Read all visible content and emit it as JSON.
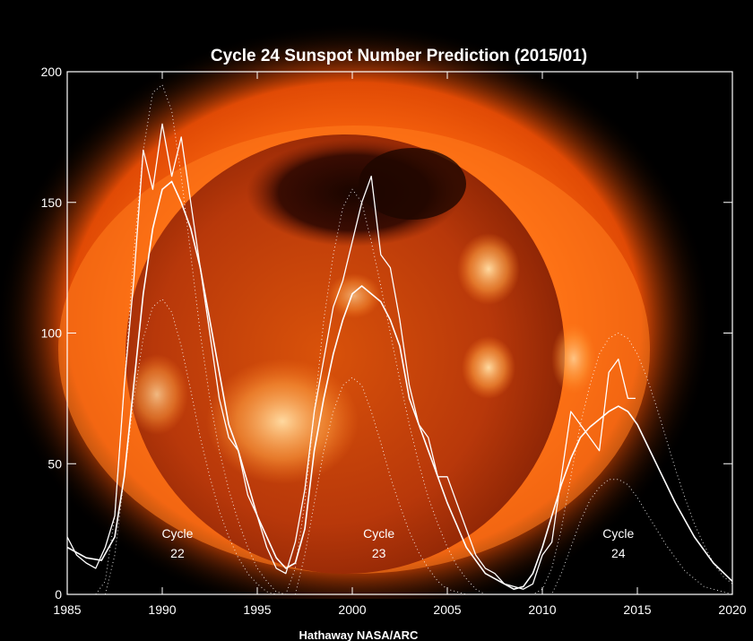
{
  "chart_data": {
    "type": "line",
    "title": "Cycle 24 Sunspot Number Prediction (2015/01)",
    "credit": "Hathaway  NASA/ARC",
    "xlabel": "",
    "ylabel": "",
    "xlim": [
      1985,
      2020
    ],
    "ylim": [
      0,
      200
    ],
    "x_ticks": [
      "1985",
      "1990",
      "1995",
      "2000",
      "2005",
      "2010",
      "2015",
      "2020"
    ],
    "y_ticks": [
      "0",
      "50",
      "100",
      "150",
      "200"
    ],
    "cycle_labels": [
      {
        "line1": "Cycle",
        "line2": "22",
        "year": 1990.8
      },
      {
        "line1": "Cycle",
        "line2": "23",
        "year": 2001.4
      },
      {
        "line1": "Cycle",
        "line2": "24",
        "year": 2014.0
      }
    ],
    "series": [
      {
        "style": "monthly",
        "x": [
          1985.0,
          1985.5,
          1986.0,
          1986.5,
          1987.0,
          1987.5,
          1988.0,
          1988.5,
          1989.0,
          1989.5,
          1990.0,
          1990.5,
          1991.0,
          1991.5,
          1992.0,
          1992.5,
          1993.0,
          1993.5,
          1994.0,
          1994.5,
          1995.0,
          1995.5,
          1996.0,
          1996.5,
          1997.0,
          1997.5,
          1998.0,
          1998.5,
          1999.0,
          1999.5,
          2000.0,
          2000.5,
          2001.0,
          2001.5,
          2002.0,
          2002.5,
          2003.0,
          2003.5,
          2004.0,
          2004.5,
          2005.0,
          2005.5,
          2006.0,
          2006.5,
          2007.0,
          2007.5,
          2008.0,
          2008.5,
          2009.0,
          2009.5,
          2010.0,
          2010.5,
          2011.0,
          2011.5,
          2012.0,
          2012.5,
          2013.0,
          2013.5,
          2014.0,
          2014.5,
          2014.9
        ],
        "y": [
          22,
          15,
          12,
          10,
          18,
          30,
          80,
          120,
          170,
          155,
          180,
          160,
          175,
          150,
          125,
          100,
          75,
          60,
          55,
          38,
          30,
          18,
          10,
          8,
          20,
          40,
          70,
          90,
          110,
          120,
          135,
          150,
          160,
          130,
          125,
          105,
          80,
          65,
          60,
          45,
          45,
          35,
          25,
          15,
          10,
          8,
          4,
          3,
          2,
          4,
          15,
          20,
          45,
          70,
          65,
          60,
          55,
          85,
          90,
          75,
          75
        ]
      },
      {
        "style": "smoothed",
        "x": [
          1985.0,
          1986.0,
          1986.8,
          1987.5,
          1988.0,
          1988.5,
          1989.0,
          1989.5,
          1990.0,
          1990.5,
          1991.0,
          1991.5,
          1992.0,
          1992.5,
          1993.0,
          1993.5,
          1994.0,
          1995.0,
          1996.0,
          1996.5,
          1997.0,
          1997.5,
          1998.0,
          1998.5,
          1999.0,
          1999.5,
          2000.0,
          2000.5,
          2001.0,
          2001.5,
          2002.0,
          2002.5,
          2003.0,
          2003.5,
          2004.0,
          2005.0,
          2006.0,
          2007.0,
          2008.0,
          2008.5,
          2009.0,
          2009.5,
          2010.0,
          2010.5,
          2011.0,
          2011.5,
          2012.0,
          2012.5,
          2013.0,
          2013.5,
          2014.0,
          2014.5,
          2015.0,
          2016.0,
          2017.0,
          2018.0,
          2019.0,
          2020.0
        ],
        "y": [
          18,
          14,
          13,
          22,
          45,
          80,
          115,
          140,
          155,
          158,
          150,
          140,
          125,
          105,
          85,
          65,
          55,
          30,
          14,
          10,
          12,
          25,
          55,
          75,
          92,
          105,
          115,
          118,
          115,
          112,
          105,
          95,
          75,
          65,
          55,
          35,
          18,
          8,
          4,
          2,
          3,
          8,
          18,
          30,
          42,
          52,
          60,
          64,
          67,
          70,
          72,
          70,
          65,
          50,
          35,
          22,
          12,
          5
        ]
      },
      {
        "style": "upper-bound",
        "x": [
          1986.5,
          1987.0,
          1987.5,
          1988.0,
          1988.5,
          1989.0,
          1989.5,
          1990.0,
          1990.5,
          1991.0,
          1991.5,
          1992.0,
          1992.5,
          1993.0,
          1993.5,
          1994.0,
          1994.5,
          1995.0,
          1995.5,
          1996.0,
          1996.5,
          1997.0,
          1997.5,
          1998.0,
          1998.5,
          1999.0,
          1999.5,
          2000.0,
          2000.5,
          2001.0,
          2001.5,
          2002.0,
          2002.5,
          2003.0,
          2003.5,
          2004.0,
          2004.5,
          2005.0,
          2005.5,
          2006.0,
          2006.5,
          2007.0,
          2007.5,
          2008.0,
          2008.5,
          2009.0,
          2009.5,
          2010.0,
          2010.5,
          2011.0,
          2011.5,
          2012.0,
          2012.5,
          2013.0,
          2013.5,
          2014.0,
          2014.5,
          2015.0,
          2015.5,
          2016.0,
          2016.5,
          2017.0,
          2017.5,
          2018.0,
          2018.5,
          2019.0,
          2019.5,
          2020.0
        ],
        "y": [
          0,
          5,
          30,
          80,
          130,
          170,
          192,
          195,
          185,
          160,
          130,
          100,
          75,
          55,
          40,
          28,
          18,
          10,
          5,
          1,
          0,
          10,
          35,
          70,
          105,
          130,
          148,
          155,
          150,
          135,
          118,
          100,
          82,
          65,
          50,
          37,
          27,
          18,
          11,
          6,
          2,
          0,
          0,
          0,
          0,
          0,
          0,
          2,
          10,
          25,
          45,
          65,
          80,
          92,
          98,
          100,
          98,
          92,
          83,
          72,
          60,
          48,
          37,
          27,
          19,
          12,
          7,
          4
        ]
      },
      {
        "style": "lower-bound",
        "x": [
          1987.0,
          1987.5,
          1988.0,
          1988.5,
          1989.0,
          1989.5,
          1990.0,
          1990.5,
          1991.0,
          1991.5,
          1992.0,
          1992.5,
          1993.0,
          1993.5,
          1994.0,
          1994.5,
          1995.0,
          1995.5,
          1996.0,
          1997.0,
          1997.5,
          1998.0,
          1998.5,
          1999.0,
          1999.5,
          2000.0,
          2000.5,
          2001.0,
          2001.5,
          2002.0,
          2002.5,
          2003.0,
          2003.5,
          2004.0,
          2004.5,
          2005.0,
          2005.5,
          2006.0,
          2006.5,
          2007.0,
          2010.5,
          2011.0,
          2011.5,
          2012.0,
          2012.5,
          2013.0,
          2013.5,
          2014.0,
          2014.5,
          2015.0,
          2015.5,
          2016.0,
          2016.5,
          2017.0,
          2017.5,
          2018.0,
          2018.5,
          2019.0,
          2019.5,
          2020.0
        ],
        "y": [
          0,
          15,
          45,
          75,
          98,
          110,
          113,
          108,
          95,
          78,
          60,
          45,
          32,
          22,
          14,
          8,
          4,
          1,
          0,
          0,
          15,
          35,
          55,
          70,
          80,
          83,
          80,
          70,
          58,
          45,
          34,
          24,
          16,
          10,
          5,
          2,
          1,
          0,
          0,
          0,
          0,
          8,
          18,
          28,
          36,
          41,
          44,
          44,
          42,
          37,
          31,
          25,
          19,
          14,
          9,
          6,
          3,
          2,
          1,
          0
        ]
      }
    ]
  }
}
